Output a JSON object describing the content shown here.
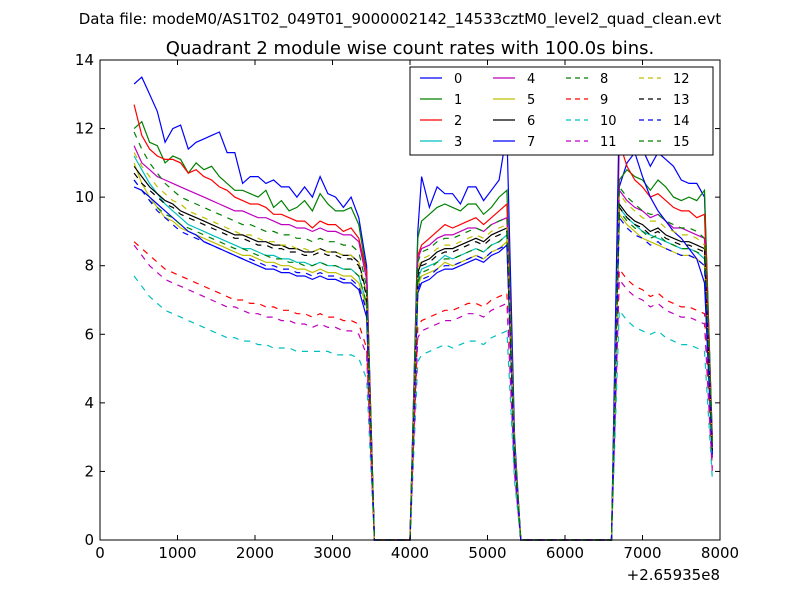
{
  "figure": {
    "suptitle": "Data file: modeM0/AS1T02_049T01_9000002142_14533cztM0_level2_quad_clean.evt",
    "title": "Quadrant 2 module wise count rates with 100.0s bins.",
    "x_offset_label": "+2.65935e8"
  },
  "chart_data": {
    "type": "line",
    "title": "Quadrant 2 module wise count rates with 100.0s bins.",
    "xlabel": "",
    "ylabel": "",
    "xlim": [
      0,
      8000
    ],
    "ylim": [
      0,
      14
    ],
    "x_offset": "+2.65935e8",
    "x_ticks": [
      "0",
      "1000",
      "2000",
      "3000",
      "4000",
      "5000",
      "6000",
      "7000",
      "8000"
    ],
    "y_ticks": [
      "0",
      "2",
      "4",
      "6",
      "8",
      "10",
      "12",
      "14"
    ],
    "grid": false,
    "legend_position": "top-right",
    "legend_columns": 4,
    "x": [
      440,
      540,
      640,
      740,
      840,
      940,
      1040,
      1140,
      1240,
      1340,
      1440,
      1540,
      1640,
      1740,
      1840,
      1940,
      2040,
      2140,
      2240,
      2340,
      2440,
      2540,
      2640,
      2740,
      2840,
      2940,
      3040,
      3140,
      3240,
      3340,
      3440,
      3540,
      3600,
      4000,
      4100,
      4150,
      4250,
      4350,
      4450,
      4550,
      4650,
      4750,
      4850,
      4950,
      5050,
      5150,
      5250,
      5350,
      5430,
      6520,
      6600,
      6700,
      6800,
      6900,
      7000,
      7100,
      7200,
      7300,
      7400,
      7500,
      7600,
      7700,
      7800,
      7900
    ],
    "series": [
      {
        "name": "0",
        "color": "#0000ff",
        "dash": "solid",
        "values": [
          13.3,
          13.5,
          13.0,
          12.5,
          11.6,
          12.0,
          12.1,
          11.4,
          11.6,
          11.7,
          11.8,
          11.9,
          11.3,
          11.3,
          10.4,
          10.6,
          10.6,
          10.4,
          10.5,
          10.3,
          10.3,
          10.0,
          10.3,
          10.0,
          10.6,
          10.1,
          10.0,
          9.7,
          10.0,
          9.4,
          8.0,
          0.0,
          0.0,
          0.0,
          9.0,
          10.6,
          9.7,
          10.3,
          10.1,
          10.1,
          9.8,
          10.3,
          10.3,
          9.9,
          10.2,
          10.5,
          11.9,
          3.0,
          0.0,
          0.0,
          0.0,
          10.3,
          11.0,
          11.3,
          11.4,
          10.9,
          11.3,
          11.1,
          10.9,
          10.5,
          10.4,
          10.4,
          10.0,
          3.0
        ]
      },
      {
        "name": "1",
        "color": "#008000",
        "dash": "solid",
        "values": [
          12.0,
          12.2,
          11.6,
          11.5,
          11.0,
          11.2,
          11.1,
          10.7,
          11.0,
          10.8,
          10.9,
          10.6,
          10.4,
          10.2,
          10.2,
          10.1,
          10.0,
          10.2,
          9.7,
          9.9,
          9.6,
          9.7,
          9.9,
          9.6,
          10.1,
          9.8,
          9.6,
          9.6,
          9.7,
          9.2,
          7.8,
          0.0,
          0.0,
          0.0,
          8.8,
          9.3,
          9.5,
          9.7,
          9.8,
          9.7,
          9.6,
          9.8,
          9.8,
          9.5,
          9.7,
          10.0,
          10.2,
          2.8,
          0.0,
          0.0,
          0.0,
          10.5,
          10.8,
          10.6,
          10.5,
          10.2,
          10.5,
          10.3,
          10.0,
          9.9,
          10.0,
          9.9,
          10.2,
          2.9
        ]
      },
      {
        "name": "2",
        "color": "#ff0000",
        "dash": "solid",
        "values": [
          12.7,
          11.8,
          11.4,
          11.2,
          11.1,
          11.1,
          11.0,
          10.7,
          10.8,
          10.6,
          10.5,
          10.3,
          10.2,
          10.0,
          9.9,
          9.8,
          9.8,
          9.7,
          9.5,
          9.5,
          9.4,
          9.3,
          9.3,
          9.1,
          9.3,
          9.2,
          9.2,
          9.0,
          9.1,
          8.8,
          7.8,
          0.0,
          0.0,
          0.0,
          8.3,
          8.6,
          8.8,
          9.0,
          9.2,
          9.1,
          9.2,
          9.3,
          9.4,
          9.2,
          9.4,
          9.6,
          9.8,
          2.7,
          0.0,
          0.0,
          0.0,
          11.6,
          10.9,
          10.5,
          10.3,
          10.0,
          10.1,
          9.9,
          9.7,
          9.6,
          9.6,
          9.4,
          9.5,
          2.8
        ]
      },
      {
        "name": "3",
        "color": "#00bfbf",
        "dash": "solid",
        "values": [
          11.2,
          10.8,
          10.4,
          10.1,
          9.8,
          9.6,
          9.4,
          9.2,
          9.1,
          9.0,
          8.9,
          8.8,
          8.7,
          8.6,
          8.5,
          8.5,
          8.4,
          8.3,
          8.3,
          8.2,
          8.2,
          8.1,
          8.1,
          8.0,
          8.1,
          8.0,
          8.0,
          7.9,
          7.9,
          7.7,
          6.9,
          0.0,
          0.0,
          0.0,
          7.6,
          7.9,
          8.0,
          8.1,
          8.3,
          8.2,
          8.3,
          8.4,
          8.5,
          8.4,
          8.6,
          8.7,
          8.9,
          2.5,
          0.0,
          0.0,
          0.0,
          9.7,
          9.4,
          9.2,
          9.0,
          8.9,
          8.8,
          8.7,
          8.6,
          8.5,
          8.5,
          8.4,
          8.2,
          2.6
        ]
      },
      {
        "name": "4",
        "color": "#bf00bf",
        "dash": "solid",
        "values": [
          11.5,
          11.0,
          10.8,
          10.6,
          10.5,
          10.4,
          10.3,
          10.2,
          10.1,
          10.0,
          9.9,
          9.8,
          9.7,
          9.6,
          9.6,
          9.5,
          9.4,
          9.4,
          9.3,
          9.2,
          9.2,
          9.1,
          9.1,
          9.0,
          9.1,
          9.0,
          9.0,
          8.9,
          8.9,
          8.7,
          7.6,
          0.0,
          0.0,
          0.0,
          8.2,
          8.5,
          8.6,
          8.8,
          8.9,
          8.9,
          9.0,
          9.1,
          9.1,
          9.0,
          9.2,
          9.3,
          9.4,
          2.6,
          0.0,
          0.0,
          0.0,
          10.2,
          9.9,
          9.7,
          9.6,
          9.4,
          9.5,
          9.3,
          9.1,
          9.1,
          9.0,
          8.9,
          8.8,
          2.7
        ]
      },
      {
        "name": "5",
        "color": "#bfbf00",
        "dash": "solid",
        "values": [
          11.0,
          10.4,
          10.0,
          9.7,
          9.4,
          9.3,
          9.1,
          9.0,
          8.9,
          8.8,
          8.7,
          8.6,
          8.5,
          8.4,
          8.3,
          8.3,
          8.2,
          8.1,
          8.1,
          8.0,
          8.0,
          7.9,
          7.9,
          7.8,
          7.9,
          7.8,
          7.8,
          7.7,
          7.7,
          7.5,
          6.8,
          0.0,
          0.0,
          0.0,
          7.4,
          7.7,
          7.8,
          7.9,
          8.1,
          8.0,
          8.1,
          8.2,
          8.3,
          8.2,
          8.4,
          8.5,
          8.7,
          2.4,
          0.0,
          0.0,
          0.0,
          9.5,
          9.2,
          9.0,
          8.8,
          8.7,
          8.6,
          8.5,
          8.4,
          8.3,
          8.3,
          8.2,
          8.0,
          2.5
        ]
      },
      {
        "name": "6",
        "color": "#000000",
        "dash": "solid",
        "values": [
          10.9,
          10.6,
          10.3,
          10.1,
          9.9,
          9.8,
          9.6,
          9.5,
          9.4,
          9.3,
          9.2,
          9.1,
          9.0,
          8.9,
          8.9,
          8.8,
          8.7,
          8.7,
          8.6,
          8.6,
          8.5,
          8.5,
          8.4,
          8.4,
          8.5,
          8.4,
          8.4,
          8.3,
          8.3,
          8.1,
          7.2,
          0.0,
          0.0,
          0.0,
          7.8,
          8.1,
          8.2,
          8.4,
          8.5,
          8.5,
          8.6,
          8.7,
          8.8,
          8.7,
          8.9,
          9.0,
          9.1,
          2.5,
          0.0,
          0.0,
          0.0,
          9.8,
          9.5,
          9.3,
          9.2,
          9.0,
          9.1,
          8.9,
          8.8,
          8.7,
          8.7,
          8.6,
          8.5,
          2.6
        ]
      },
      {
        "name": "7",
        "color": "#0000ff",
        "dash": "solid",
        "values": [
          10.3,
          10.2,
          10.0,
          9.8,
          9.6,
          9.4,
          9.2,
          9.0,
          8.9,
          8.7,
          8.6,
          8.5,
          8.4,
          8.3,
          8.2,
          8.1,
          8.0,
          7.9,
          7.9,
          7.8,
          7.8,
          7.7,
          7.7,
          7.6,
          7.7,
          7.6,
          7.6,
          7.5,
          7.5,
          7.3,
          6.5,
          0.0,
          0.0,
          0.0,
          7.2,
          7.5,
          7.6,
          7.8,
          7.9,
          7.9,
          8.0,
          8.1,
          8.2,
          8.1,
          8.3,
          8.4,
          8.6,
          2.4,
          0.0,
          0.0,
          0.0,
          12.6,
          11.9,
          11.3,
          10.6,
          10.0,
          9.6,
          9.3,
          9.0,
          8.8,
          8.5,
          8.2,
          7.5,
          2.4
        ]
      },
      {
        "name": "8",
        "color": "#008000",
        "dash": "dashed",
        "values": [
          10.5,
          10.2,
          9.9,
          9.7,
          9.5,
          9.4,
          9.2,
          9.1,
          9.0,
          8.9,
          8.8,
          8.7,
          8.6,
          8.5,
          8.5,
          8.4,
          8.3,
          8.3,
          8.2,
          8.2,
          8.1,
          8.1,
          8.0,
          8.0,
          8.1,
          8.0,
          8.0,
          7.9,
          7.9,
          7.7,
          6.9,
          0.0,
          0.0,
          0.0,
          7.5,
          7.8,
          7.9,
          8.1,
          8.2,
          8.2,
          8.3,
          8.4,
          8.5,
          8.4,
          8.6,
          8.7,
          8.9,
          2.5,
          0.0,
          0.0,
          0.0,
          9.6,
          9.3,
          9.1,
          9.0,
          8.8,
          8.9,
          8.7,
          8.6,
          8.5,
          8.5,
          8.4,
          8.3,
          2.6
        ]
      },
      {
        "name": "9",
        "color": "#ff0000",
        "dash": "dashed",
        "values": [
          8.7,
          8.5,
          8.3,
          8.1,
          7.9,
          7.8,
          7.7,
          7.6,
          7.5,
          7.4,
          7.3,
          7.2,
          7.1,
          7.0,
          7.0,
          6.9,
          6.9,
          6.8,
          6.8,
          6.7,
          6.7,
          6.6,
          6.6,
          6.5,
          6.6,
          6.5,
          6.5,
          6.4,
          6.4,
          6.3,
          5.6,
          0.0,
          0.0,
          0.0,
          6.2,
          6.4,
          6.5,
          6.6,
          6.7,
          6.7,
          6.8,
          6.9,
          6.9,
          6.8,
          7.0,
          7.1,
          7.2,
          2.0,
          0.0,
          0.0,
          0.0,
          7.9,
          7.6,
          7.4,
          7.3,
          7.1,
          7.2,
          7.0,
          6.9,
          6.8,
          6.8,
          6.7,
          6.6,
          2.1
        ]
      },
      {
        "name": "10",
        "color": "#00bfbf",
        "dash": "dashed",
        "values": [
          7.7,
          7.4,
          7.1,
          6.9,
          6.7,
          6.6,
          6.5,
          6.4,
          6.3,
          6.2,
          6.1,
          6.0,
          5.9,
          5.9,
          5.8,
          5.8,
          5.7,
          5.7,
          5.6,
          5.6,
          5.6,
          5.5,
          5.5,
          5.5,
          5.5,
          5.5,
          5.4,
          5.4,
          5.4,
          5.3,
          4.7,
          0.0,
          0.0,
          0.0,
          5.2,
          5.4,
          5.5,
          5.6,
          5.7,
          5.6,
          5.7,
          5.8,
          5.8,
          5.7,
          5.9,
          6.0,
          6.1,
          1.7,
          0.0,
          0.0,
          0.0,
          6.7,
          6.4,
          6.2,
          6.1,
          6.0,
          6.1,
          5.9,
          5.8,
          5.7,
          5.7,
          5.6,
          5.5,
          1.8
        ]
      },
      {
        "name": "11",
        "color": "#bf00bf",
        "dash": "dashed",
        "values": [
          8.6,
          8.3,
          8.0,
          7.8,
          7.6,
          7.5,
          7.4,
          7.3,
          7.2,
          7.1,
          7.0,
          6.9,
          6.8,
          6.8,
          6.7,
          6.6,
          6.6,
          6.5,
          6.5,
          6.4,
          6.4,
          6.3,
          6.3,
          6.2,
          6.3,
          6.2,
          6.2,
          6.1,
          6.1,
          6.0,
          5.4,
          0.0,
          0.0,
          0.0,
          5.9,
          6.1,
          6.2,
          6.3,
          6.4,
          6.4,
          6.5,
          6.6,
          6.6,
          6.5,
          6.7,
          6.8,
          6.9,
          1.9,
          0.0,
          0.0,
          0.0,
          7.6,
          7.3,
          7.1,
          7.0,
          6.8,
          6.9,
          6.7,
          6.6,
          6.5,
          6.5,
          6.4,
          6.3,
          2.0
        ]
      },
      {
        "name": "12",
        "color": "#bfbf00",
        "dash": "dashed",
        "values": [
          11.3,
          10.9,
          10.6,
          10.3,
          10.1,
          9.9,
          9.8,
          9.6,
          9.5,
          9.4,
          9.3,
          9.2,
          9.1,
          9.0,
          8.9,
          8.9,
          8.8,
          8.7,
          8.7,
          8.6,
          8.6,
          8.5,
          8.5,
          8.4,
          8.5,
          8.4,
          8.4,
          8.3,
          8.3,
          8.1,
          7.2,
          0.0,
          0.0,
          0.0,
          7.9,
          8.2,
          8.3,
          8.5,
          8.6,
          8.6,
          8.7,
          8.8,
          8.9,
          8.8,
          9.0,
          9.1,
          9.2,
          2.6,
          0.0,
          0.0,
          0.0,
          10.1,
          9.8,
          9.6,
          9.4,
          9.3,
          9.3,
          9.1,
          9.0,
          8.9,
          8.9,
          8.8,
          8.6,
          2.7
        ]
      },
      {
        "name": "13",
        "color": "#000000",
        "dash": "dashed",
        "values": [
          10.7,
          10.4,
          10.2,
          10.0,
          9.8,
          9.7,
          9.5,
          9.4,
          9.3,
          9.2,
          9.1,
          9.0,
          8.9,
          8.8,
          8.8,
          8.7,
          8.6,
          8.6,
          8.5,
          8.5,
          8.4,
          8.4,
          8.3,
          8.3,
          8.4,
          8.3,
          8.3,
          8.2,
          8.2,
          8.0,
          7.1,
          0.0,
          0.0,
          0.0,
          7.7,
          8.0,
          8.1,
          8.3,
          8.4,
          8.4,
          8.5,
          8.6,
          8.7,
          8.6,
          8.8,
          8.9,
          9.0,
          2.5,
          0.0,
          0.0,
          0.0,
          9.7,
          9.4,
          9.2,
          9.1,
          8.9,
          9.0,
          8.8,
          8.7,
          8.6,
          8.6,
          8.5,
          8.4,
          2.6
        ]
      },
      {
        "name": "14",
        "color": "#0000ff",
        "dash": "dashed",
        "values": [
          10.5,
          10.2,
          9.9,
          9.6,
          9.4,
          9.2,
          9.0,
          8.9,
          8.8,
          8.7,
          8.6,
          8.5,
          8.4,
          8.3,
          8.2,
          8.2,
          8.1,
          8.0,
          8.0,
          7.9,
          7.9,
          7.8,
          7.8,
          7.7,
          7.8,
          7.7,
          7.7,
          7.6,
          7.6,
          7.4,
          6.7,
          0.0,
          0.0,
          0.0,
          7.3,
          7.6,
          7.7,
          7.9,
          8.0,
          8.0,
          8.1,
          8.2,
          8.3,
          8.2,
          8.4,
          8.5,
          8.6,
          2.4,
          0.0,
          0.0,
          0.0,
          9.4,
          9.1,
          8.9,
          8.8,
          8.6,
          8.7,
          8.5,
          8.4,
          8.3,
          8.3,
          8.2,
          8.0,
          2.5
        ]
      },
      {
        "name": "15",
        "color": "#008000",
        "dash": "dashed",
        "values": [
          11.9,
          11.4,
          11.0,
          10.7,
          10.4,
          10.2,
          10.0,
          9.9,
          9.8,
          9.7,
          9.6,
          9.5,
          9.4,
          9.3,
          9.2,
          9.2,
          9.1,
          9.0,
          9.0,
          8.9,
          8.9,
          8.8,
          8.8,
          8.7,
          8.8,
          8.7,
          8.7,
          8.6,
          8.6,
          8.4,
          7.4,
          0.0,
          0.0,
          0.0,
          8.1,
          8.4,
          8.5,
          8.7,
          8.8,
          8.8,
          8.9,
          9.0,
          9.1,
          9.0,
          9.2,
          9.3,
          9.4,
          2.7,
          0.0,
          0.0,
          0.0,
          10.3,
          10.0,
          9.8,
          9.6,
          9.5,
          9.5,
          9.3,
          9.2,
          9.1,
          9.1,
          9.0,
          8.8,
          2.8
        ]
      }
    ]
  }
}
